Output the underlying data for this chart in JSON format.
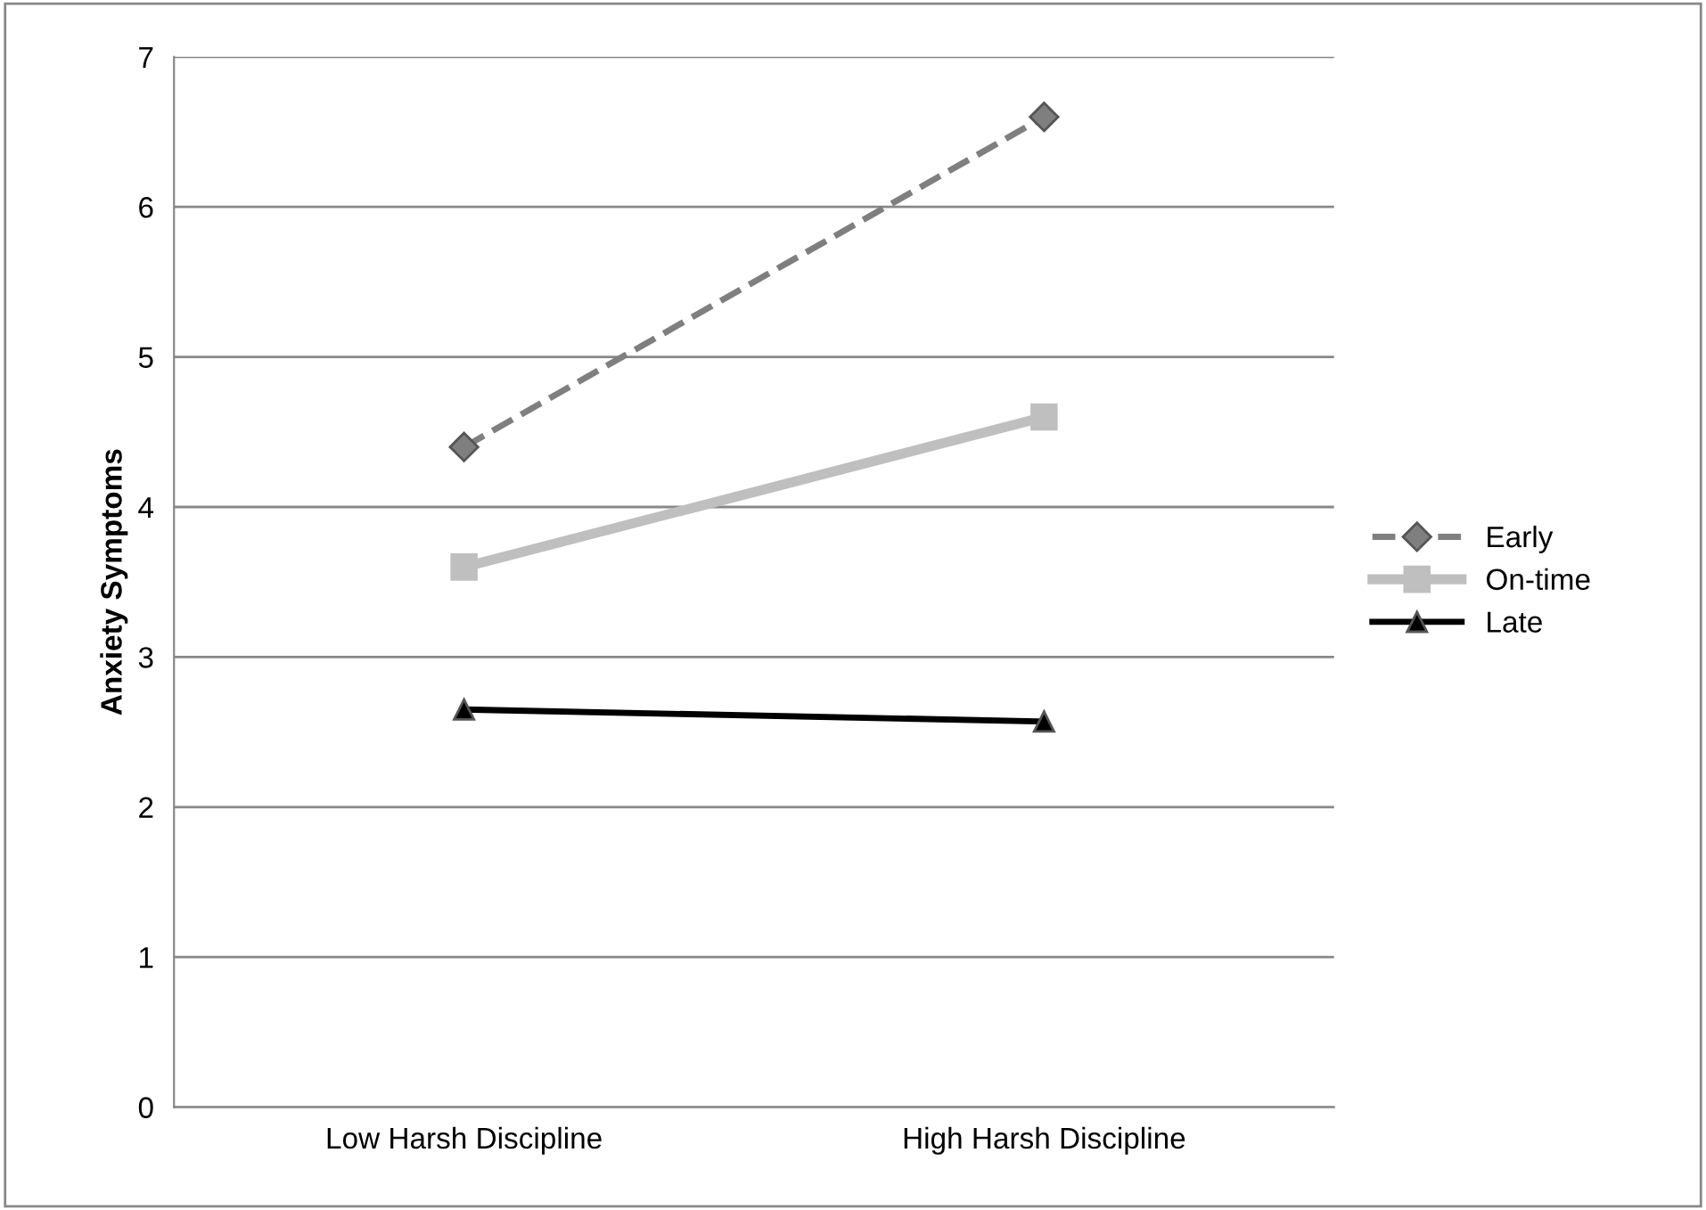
{
  "chart_data": {
    "type": "line",
    "ylabel": "Anxiety Symptoms",
    "categories": [
      "Low Harsh Discipline",
      "High Harsh Discipline"
    ],
    "series": [
      {
        "name": "Early",
        "color": "#7f7f7f",
        "values": [
          4.4,
          6.6
        ],
        "marker": "diamond",
        "line_style": "dashed"
      },
      {
        "name": "On-time",
        "color": "#bfbfbf",
        "values": [
          3.6,
          4.6
        ],
        "marker": "square",
        "line_style": "solid"
      },
      {
        "name": "Late",
        "color": "#000000",
        "values": [
          2.65,
          2.57
        ],
        "marker": "triangle",
        "line_style": "solid"
      }
    ],
    "ylim": [
      0,
      7
    ],
    "yticks": [
      0,
      1,
      2,
      3,
      4,
      5,
      6,
      7
    ],
    "grid": "y",
    "legend": "right"
  }
}
